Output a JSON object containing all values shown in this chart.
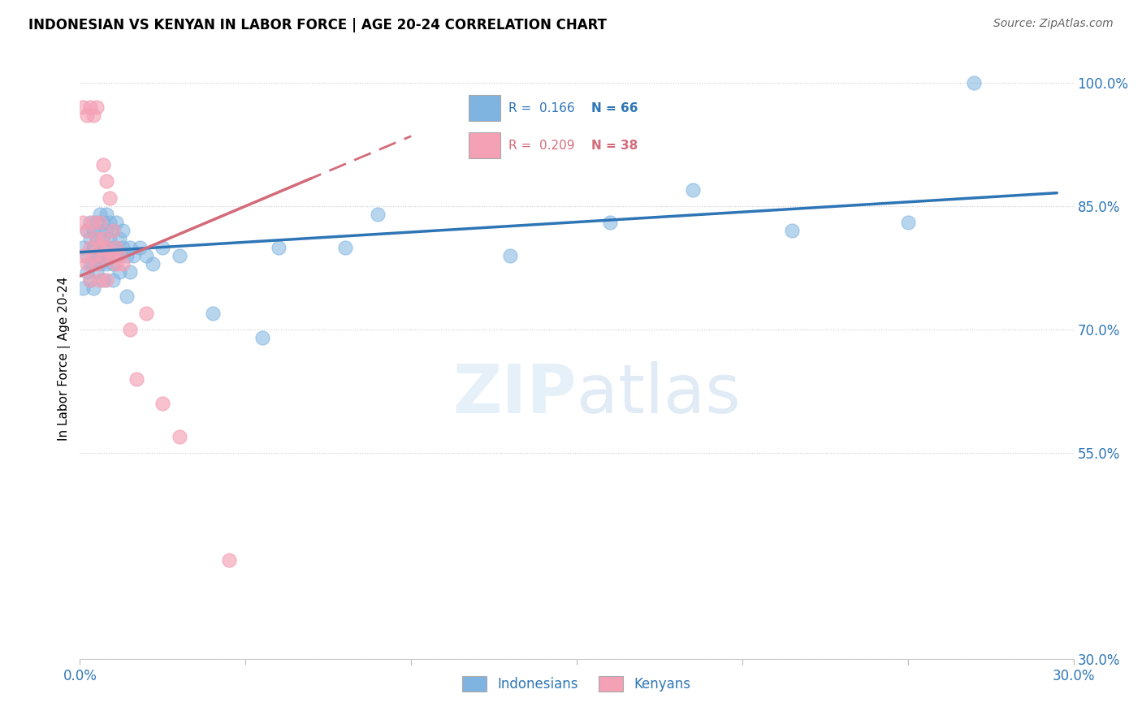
{
  "title": "INDONESIAN VS KENYAN IN LABOR FORCE | AGE 20-24 CORRELATION CHART",
  "source": "Source: ZipAtlas.com",
  "ylabel": "In Labor Force | Age 20-24",
  "xlim": [
    0.0,
    0.3
  ],
  "ylim": [
    0.3,
    1.03
  ],
  "ytick_vals": [
    0.3,
    0.55,
    0.7,
    0.85,
    1.0
  ],
  "ytick_labels": [
    "30.0%",
    "55.0%",
    "70.0%",
    "85.0%",
    "100.0%"
  ],
  "xtick_vals": [
    0.0,
    0.05,
    0.1,
    0.15,
    0.2,
    0.25,
    0.3
  ],
  "xtick_labels": [
    "0.0%",
    "",
    "",
    "",
    "",
    "",
    "30.0%"
  ],
  "r_indonesian": 0.166,
  "n_indonesian": 66,
  "r_kenyan": 0.209,
  "n_kenyan": 38,
  "blue_scatter_color": "#7fb3e0",
  "pink_scatter_color": "#f4a0b5",
  "blue_line_color": "#2e75b6",
  "pink_line_color": "#d46b7a",
  "blue_text_color": "#2e75b6",
  "pink_text_color": "#d46b7a",
  "watermark": "ZIPatlas",
  "indonesian_x": [
    0.001,
    0.001,
    0.002,
    0.002,
    0.002,
    0.003,
    0.003,
    0.003,
    0.003,
    0.004,
    0.004,
    0.004,
    0.004,
    0.004,
    0.005,
    0.005,
    0.005,
    0.005,
    0.006,
    0.006,
    0.006,
    0.006,
    0.006,
    0.007,
    0.007,
    0.007,
    0.007,
    0.008,
    0.008,
    0.008,
    0.008,
    0.009,
    0.009,
    0.009,
    0.01,
    0.01,
    0.01,
    0.01,
    0.011,
    0.011,
    0.012,
    0.012,
    0.012,
    0.013,
    0.013,
    0.014,
    0.014,
    0.015,
    0.015,
    0.016,
    0.018,
    0.02,
    0.022,
    0.025,
    0.03,
    0.04,
    0.055,
    0.06,
    0.08,
    0.09,
    0.13,
    0.16,
    0.185,
    0.215,
    0.25,
    0.27
  ],
  "indonesian_y": [
    0.8,
    0.75,
    0.79,
    0.82,
    0.77,
    0.81,
    0.78,
    0.76,
    0.83,
    0.8,
    0.82,
    0.78,
    0.75,
    0.8,
    0.81,
    0.79,
    0.83,
    0.77,
    0.8,
    0.82,
    0.78,
    0.84,
    0.79,
    0.81,
    0.83,
    0.79,
    0.76,
    0.8,
    0.82,
    0.78,
    0.84,
    0.81,
    0.79,
    0.83,
    0.8,
    0.82,
    0.78,
    0.76,
    0.8,
    0.83,
    0.79,
    0.81,
    0.77,
    0.8,
    0.82,
    0.79,
    0.74,
    0.8,
    0.77,
    0.79,
    0.8,
    0.79,
    0.78,
    0.8,
    0.79,
    0.72,
    0.69,
    0.8,
    0.8,
    0.84,
    0.79,
    0.83,
    0.87,
    0.82,
    0.83,
    1.0
  ],
  "kenyan_x": [
    0.001,
    0.001,
    0.001,
    0.002,
    0.002,
    0.002,
    0.003,
    0.003,
    0.003,
    0.004,
    0.004,
    0.004,
    0.005,
    0.005,
    0.005,
    0.006,
    0.006,
    0.006,
    0.007,
    0.007,
    0.007,
    0.008,
    0.008,
    0.008,
    0.009,
    0.009,
    0.01,
    0.01,
    0.011,
    0.011,
    0.012,
    0.013,
    0.015,
    0.017,
    0.02,
    0.025,
    0.03,
    0.045
  ],
  "kenyan_y": [
    0.79,
    0.83,
    0.97,
    0.78,
    0.82,
    0.96,
    0.8,
    0.76,
    0.97,
    0.79,
    0.83,
    0.96,
    0.81,
    0.78,
    0.97,
    0.8,
    0.76,
    0.83,
    0.81,
    0.9,
    0.79,
    0.8,
    0.88,
    0.76,
    0.79,
    0.86,
    0.79,
    0.82,
    0.8,
    0.78,
    0.79,
    0.78,
    0.7,
    0.64,
    0.72,
    0.61,
    0.57,
    0.42
  ],
  "blue_line_x": [
    0.0,
    0.295
  ],
  "blue_line_y": [
    0.794,
    0.866
  ],
  "pink_line_x": [
    0.0,
    0.1
  ],
  "pink_line_y": [
    0.765,
    0.935
  ]
}
